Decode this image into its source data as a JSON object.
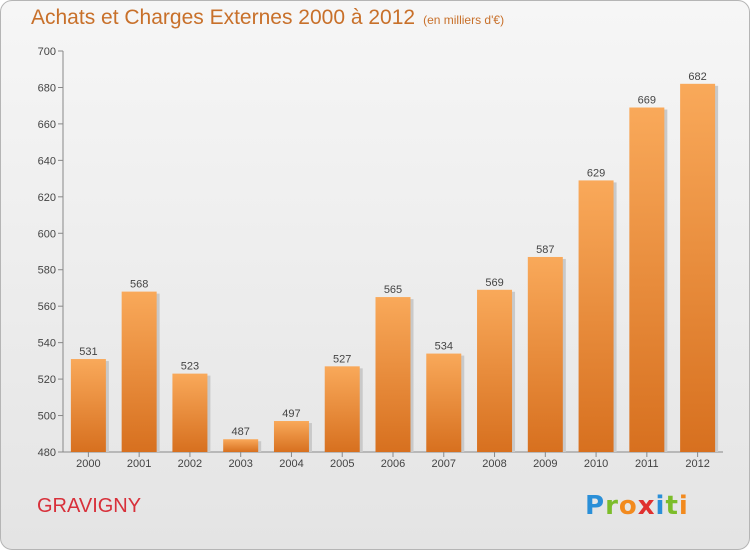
{
  "title": "Achats et Charges Externes 2000 à 2012",
  "subtitle": "(en milliers d'€)",
  "commune": "GRAVIGNY",
  "logo": {
    "letters": [
      "P",
      "r",
      "o",
      "x",
      "i",
      "t",
      "i"
    ],
    "colors": [
      "#2a8fd8",
      "#7cbd2a",
      "#f28a1e",
      "#e0302f",
      "#2a8fd8",
      "#7cbd2a",
      "#f28a1e"
    ]
  },
  "colors": {
    "bar_top": "#f9a95a",
    "bar_bottom": "#d7701f",
    "title": "#c8702a",
    "commune": "#d8303a"
  },
  "chart_data": {
    "type": "bar",
    "categories": [
      "2000",
      "2001",
      "2002",
      "2003",
      "2004",
      "2005",
      "2006",
      "2007",
      "2008",
      "2009",
      "2010",
      "2011",
      "2012"
    ],
    "values": [
      531,
      568,
      523,
      487,
      497,
      527,
      565,
      534,
      569,
      587,
      629,
      669,
      682
    ],
    "ylim": [
      480,
      700
    ],
    "yticks": [
      480,
      500,
      520,
      540,
      560,
      580,
      600,
      620,
      640,
      660,
      680,
      700
    ],
    "grid": false,
    "data_labels": true
  }
}
